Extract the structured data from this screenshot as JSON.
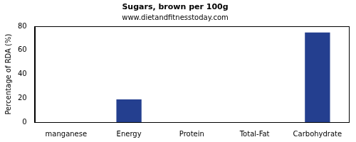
{
  "chart_data": {
    "type": "bar",
    "title": "Sugars, brown per 100g",
    "subtitle": "www.dietandfitnesstoday.com",
    "y_label": "Percentage of RDA (%)",
    "categories": [
      "manganese",
      "Energy",
      "Protein",
      "Total-Fat",
      "Carbohydrate"
    ],
    "values": [
      0,
      19,
      0,
      0,
      75
    ],
    "color": "#243f8f",
    "ylim": [
      0,
      80
    ],
    "yticks": [
      0,
      20,
      40,
      60,
      80
    ],
    "grid": false
  }
}
